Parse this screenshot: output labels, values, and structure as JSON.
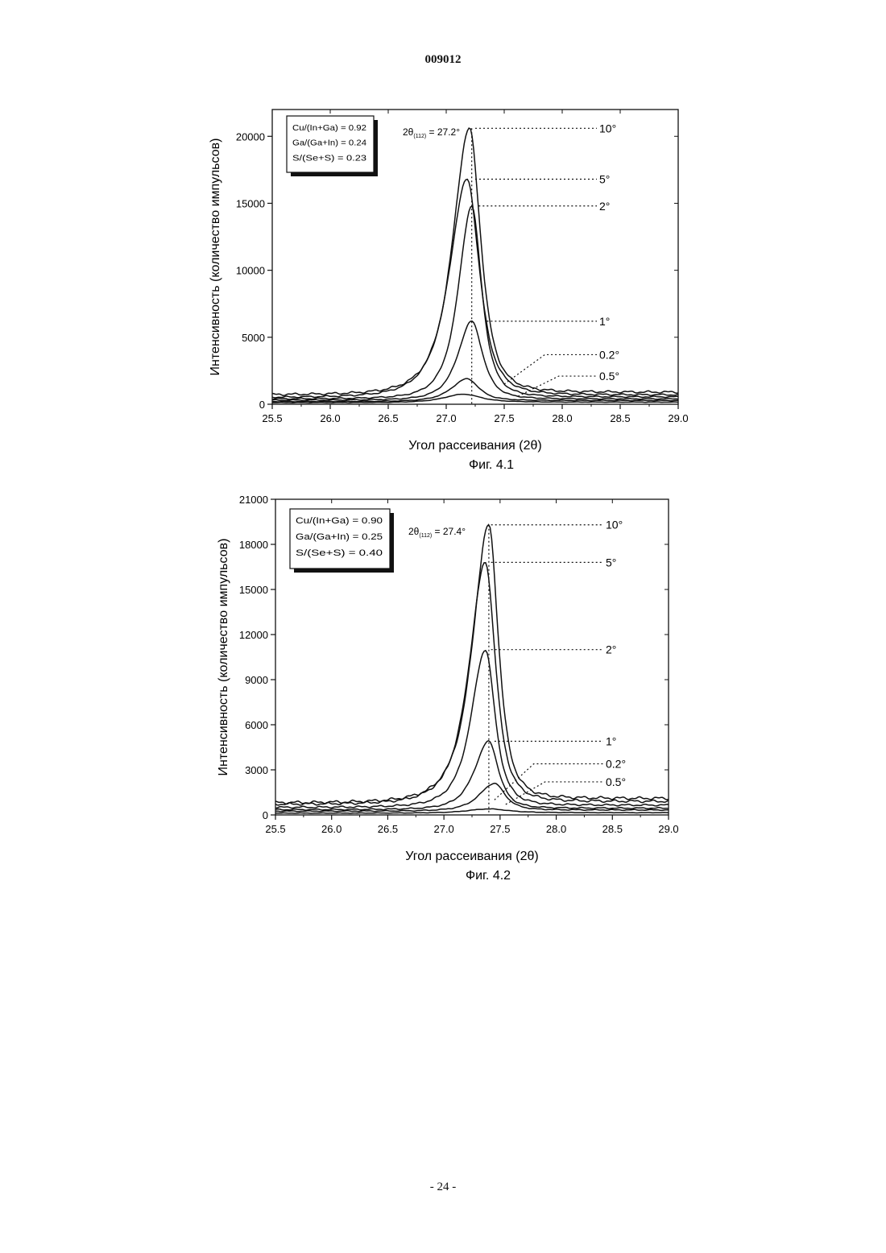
{
  "document_number": "009012",
  "page_number": "- 24 -",
  "chart_data": [
    {
      "type": "line",
      "caption": "Фиг. 4.1",
      "xlabel": "Угол рассеивания (2θ)",
      "ylabel": "Интенсивность (количество импульсов)",
      "xlim": [
        25.5,
        29.0
      ],
      "ylim": [
        0,
        22000
      ],
      "xticks": [
        "25.5",
        "26.0",
        "26.5",
        "27.0",
        "27.5",
        "28.0",
        "28.5",
        "29.0"
      ],
      "x_tick_values": [
        25.5,
        26.0,
        26.5,
        27.0,
        27.5,
        28.0,
        28.5,
        29.0
      ],
      "yticks": [
        "0",
        "5000",
        "10000",
        "15000",
        "20000"
      ],
      "y_tick_values": [
        0,
        5000,
        10000,
        15000,
        20000
      ],
      "legend_box": [
        "Cu/(In+Ga) = 0.92",
        "Ga/(Ga+In) = 0.24",
        "S/(Se+S)    = 0.23"
      ],
      "peak_annotation": {
        "prefix": "2θ",
        "sub": "(112)",
        "suffix": " = 27.2°"
      },
      "peak_line_x": 27.22,
      "series": [
        {
          "name": "10°",
          "peak_x": 27.2,
          "peak": 20600,
          "left_width": 0.34,
          "right_width": 0.23,
          "baseline": 700,
          "right_baseline": 900,
          "label_x_at": 27.25,
          "label_y_at": 20600,
          "label_y": 20600
        },
        {
          "name": "5°",
          "peak_x": 27.18,
          "peak": 16800,
          "left_width": 0.36,
          "right_width": 0.25,
          "baseline": 500,
          "right_baseline": 700,
          "label_x_at": 27.25,
          "label_y_at": 16800,
          "label_y": 16800
        },
        {
          "name": "2°",
          "peak_x": 27.22,
          "peak": 14800,
          "left_width": 0.27,
          "right_width": 0.2,
          "baseline": 400,
          "right_baseline": 550,
          "label_x_at": 27.28,
          "label_y_at": 14800,
          "label_y": 14800
        },
        {
          "name": "1°",
          "peak_x": 27.22,
          "peak": 6200,
          "left_width": 0.28,
          "right_width": 0.22,
          "baseline": 300,
          "right_baseline": 400,
          "label_x_at": 27.35,
          "label_y_at": 6200,
          "label_y": 6200
        },
        {
          "name": "0.2°",
          "peak_x": 27.18,
          "peak": 1900,
          "left_width": 0.32,
          "right_width": 0.24,
          "baseline": 200,
          "right_baseline": 280,
          "label_x_at": 27.5,
          "label_y_at": 1500,
          "label_y": 3700
        },
        {
          "name": "0.5°",
          "peak_x": 27.15,
          "peak": 750,
          "left_width": 0.4,
          "right_width": 0.35,
          "baseline": 120,
          "right_baseline": 160,
          "label_x_at": 27.62,
          "label_y_at": 600,
          "label_y": 2100
        }
      ]
    },
    {
      "type": "line",
      "caption": "Фиг. 4.2",
      "xlabel": "Угол рассеивания (2θ)",
      "ylabel": "Интенсивность (количество импульсов)",
      "xlim": [
        25.5,
        29.0
      ],
      "ylim": [
        0,
        21000
      ],
      "xticks": [
        "25.5",
        "26.0",
        "26.5",
        "27.0",
        "27.5",
        "28.0",
        "28.5",
        "29.0"
      ],
      "x_tick_values": [
        25.5,
        26.0,
        26.5,
        27.0,
        27.5,
        28.0,
        28.5,
        29.0
      ],
      "yticks": [
        "0",
        "3000",
        "6000",
        "9000",
        "12000",
        "15000",
        "18000",
        "21000"
      ],
      "y_tick_values": [
        0,
        3000,
        6000,
        9000,
        12000,
        15000,
        18000,
        21000
      ],
      "legend_box": [
        "Cu/(In+Ga)   = 0.90",
        "Ga/(Ga+In) = 0.25",
        "S/(Se+S)    =  0.40"
      ],
      "peak_annotation": {
        "prefix": "2θ",
        "sub": "(112)",
        "suffix": " = 27.4°"
      },
      "peak_line_x": 27.4,
      "series": [
        {
          "name": "10°",
          "peak_x": 27.4,
          "peak": 19300,
          "left_width": 0.34,
          "right_width": 0.2,
          "baseline": 800,
          "right_baseline": 1100,
          "label_x_at": 27.42,
          "label_y_at": 19300,
          "label_y": 19300
        },
        {
          "name": "5°",
          "peak_x": 27.37,
          "peak": 16800,
          "left_width": 0.34,
          "right_width": 0.21,
          "baseline": 700,
          "right_baseline": 900,
          "label_x_at": 27.42,
          "label_y_at": 16800,
          "label_y": 16800
        },
        {
          "name": "2°",
          "peak_x": 27.37,
          "peak": 11000,
          "left_width": 0.3,
          "right_width": 0.2,
          "baseline": 500,
          "right_baseline": 650,
          "label_x_at": 27.42,
          "label_y_at": 11000,
          "label_y": 11000
        },
        {
          "name": "1°",
          "peak_x": 27.4,
          "peak": 4900,
          "left_width": 0.3,
          "right_width": 0.2,
          "baseline": 350,
          "right_baseline": 450,
          "label_x_at": 27.45,
          "label_y_at": 4900,
          "label_y": 4900
        },
        {
          "name": "0.2°",
          "peak_x": 27.45,
          "peak": 2100,
          "left_width": 0.32,
          "right_width": 0.22,
          "baseline": 250,
          "right_baseline": 330,
          "label_x_at": 27.45,
          "label_y_at": 1000,
          "label_y": 3400
        },
        {
          "name": "0.5°",
          "peak_x": 27.4,
          "peak": 400,
          "left_width": 0.45,
          "right_width": 0.4,
          "baseline": 120,
          "right_baseline": 150,
          "label_x_at": 27.55,
          "label_y_at": 700,
          "label_y": 2200
        }
      ]
    }
  ]
}
